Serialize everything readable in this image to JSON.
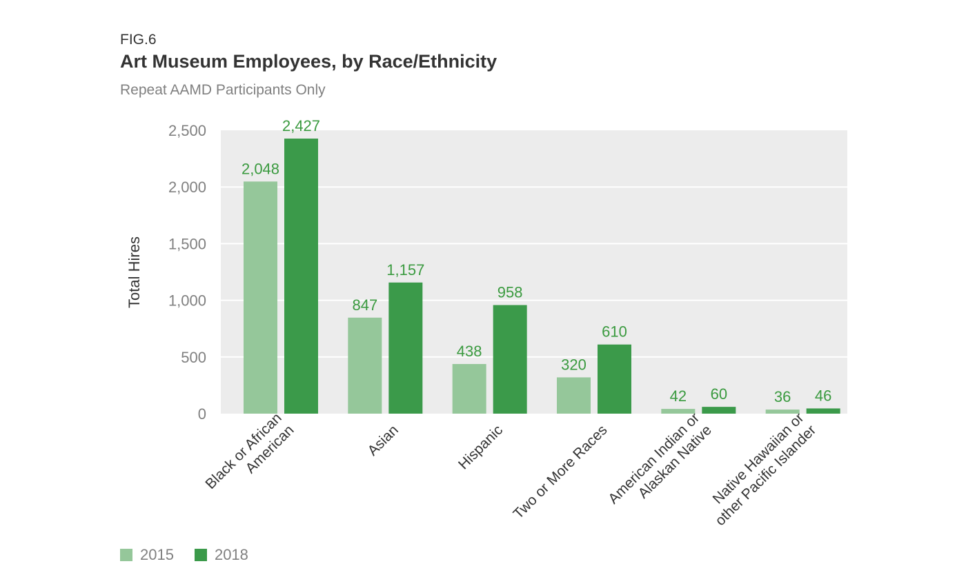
{
  "figure": {
    "label": "FIG.6",
    "title": "Art Museum Employees, by Race/Ethnicity",
    "subtitle": "Repeat AAMD Participants Only"
  },
  "colors": {
    "series_2015": "#95c79a",
    "series_2018": "#3b9a4a",
    "plot_background": "#ececec",
    "data_label": "#3a9a3f",
    "axis_text": "#808080",
    "gridline": "#ffffff"
  },
  "chart_data": {
    "type": "bar",
    "title": "Art Museum Employees, by Race/Ethnicity",
    "subtitle": "Repeat AAMD Participants Only",
    "xlabel": "",
    "ylabel": "Total Hires",
    "ylim": [
      0,
      2500
    ],
    "yticks": [
      0,
      500,
      1000,
      1500,
      2000,
      2500
    ],
    "ytick_labels": [
      "0",
      "500",
      "1,000",
      "1,500",
      "2,000",
      "2,500"
    ],
    "grid": true,
    "legend_position": "bottom-left",
    "categories": [
      [
        "Black or African",
        "American"
      ],
      [
        "Asian"
      ],
      [
        "Hispanic"
      ],
      [
        "Two or More Races"
      ],
      [
        "American Indian or",
        "Alaskan Native"
      ],
      [
        "Native Hawaiian or",
        "other Pacific Islander"
      ]
    ],
    "series": [
      {
        "name": "2015",
        "values": [
          2048,
          847,
          438,
          320,
          42,
          36
        ],
        "labels": [
          "2,048",
          "847",
          "438",
          "320",
          "42",
          "36"
        ]
      },
      {
        "name": "2018",
        "values": [
          2427,
          1157,
          958,
          610,
          60,
          46
        ],
        "labels": [
          "2,427",
          "1,157",
          "958",
          "610",
          "60",
          "46"
        ]
      }
    ]
  },
  "legend": {
    "items": [
      {
        "label": "2015"
      },
      {
        "label": "2018"
      }
    ]
  }
}
